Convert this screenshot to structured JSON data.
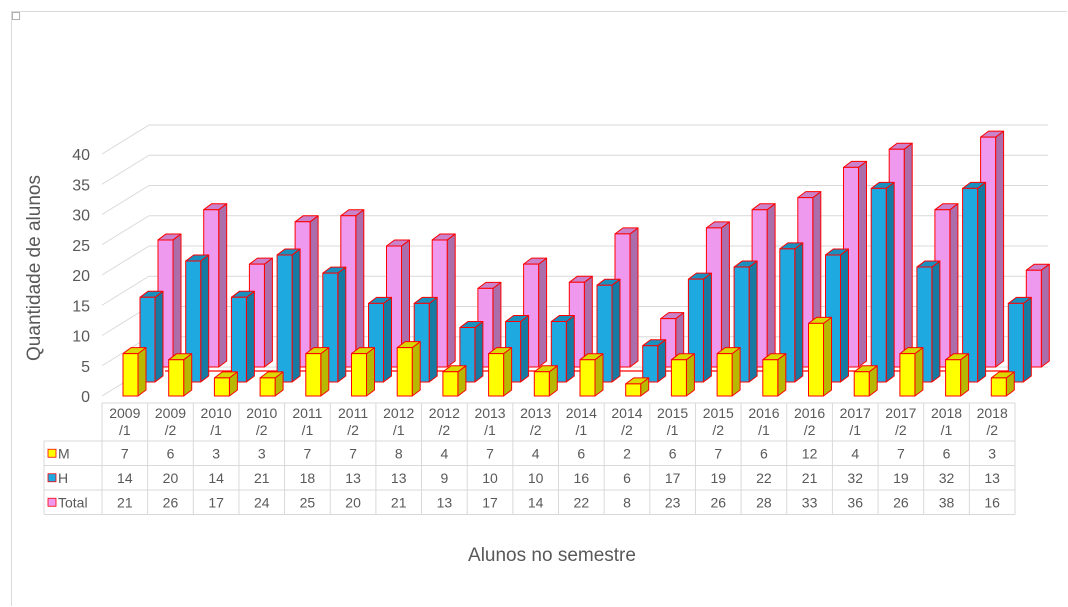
{
  "chart_data": {
    "type": "bar",
    "title": "",
    "xlabel": "Alunos no semestre",
    "ylabel": "Quantidade de alunos",
    "ylim": [
      0,
      40
    ],
    "yticks": [
      0,
      5,
      10,
      15,
      20,
      25,
      30,
      35,
      40
    ],
    "grid": true,
    "categories": [
      [
        "2009",
        "/1"
      ],
      [
        "2009",
        "/2"
      ],
      [
        "2010",
        "/1"
      ],
      [
        "2010",
        "/2"
      ],
      [
        "2011",
        "/1"
      ],
      [
        "2011",
        "/2"
      ],
      [
        "2012",
        "/1"
      ],
      [
        "2012",
        "/2"
      ],
      [
        "2013",
        "/1"
      ],
      [
        "2013",
        "/2"
      ],
      [
        "2014",
        "/1"
      ],
      [
        "2014",
        "/2"
      ],
      [
        "2015",
        "/1"
      ],
      [
        "2015",
        "/2"
      ],
      [
        "2016",
        "/1"
      ],
      [
        "2016",
        "/2"
      ],
      [
        "2017",
        "/1"
      ],
      [
        "2017",
        "/2"
      ],
      [
        "2018",
        "/1"
      ],
      [
        "2018",
        "/2"
      ]
    ],
    "series": [
      {
        "name": "M",
        "color": "#ffff00",
        "values": [
          7,
          6,
          3,
          3,
          7,
          7,
          8,
          4,
          7,
          4,
          6,
          2,
          6,
          7,
          6,
          12,
          4,
          7,
          6,
          3
        ]
      },
      {
        "name": "H",
        "color": "#1fa9e1",
        "values": [
          14,
          20,
          14,
          21,
          18,
          13,
          13,
          9,
          10,
          10,
          16,
          6,
          17,
          19,
          22,
          21,
          32,
          19,
          32,
          13
        ]
      },
      {
        "name": "Total",
        "color": "#ee99ee",
        "values": [
          21,
          26,
          17,
          24,
          25,
          20,
          21,
          13,
          17,
          14,
          22,
          8,
          23,
          26,
          28,
          33,
          36,
          26,
          38,
          16
        ]
      }
    ]
  }
}
